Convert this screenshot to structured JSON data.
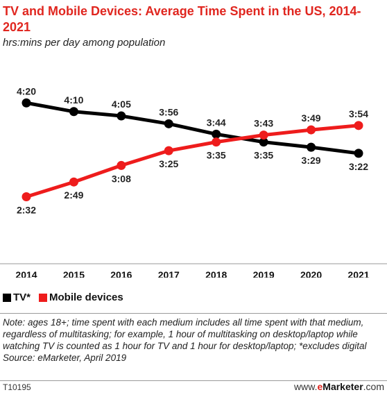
{
  "header": {
    "title": "TV and Mobile Devices: Average Time Spent in the US, 2014-2021",
    "subtitle": "hrs:mins per day among population"
  },
  "legend": {
    "tv_label": "TV*",
    "mobile_label": "Mobile devices"
  },
  "footer": {
    "note": "Note: ages 18+; time spent with each medium includes all time spent with that medium, regardless of multitasking; for example, 1 hour of multitasking on desktop/laptop while watching TV is counted as 1 hour for TV and 1 hour for desktop/laptop; *excludes digital",
    "source": "Source: eMarketer, April 2019",
    "chart_id": "T10195",
    "brand_prefix": "www.",
    "brand_e": "e",
    "brand_name": "Marketer",
    "brand_suffix": ".com"
  },
  "colors": {
    "tv": "#000000",
    "mobile": "#ee1c1c",
    "title": "#e0261f"
  },
  "chart_data": {
    "type": "line",
    "title": "TV and Mobile Devices: Average Time Spent in the US, 2014-2021",
    "subtitle": "hrs:mins per day among population",
    "xlabel": "",
    "ylabel": "",
    "categories": [
      "2014",
      "2015",
      "2016",
      "2017",
      "2018",
      "2019",
      "2020",
      "2021"
    ],
    "series": [
      {
        "name": "TV*",
        "color": "#000000",
        "values": [
          "4:20",
          "4:10",
          "4:05",
          "3:56",
          "3:44",
          "3:35",
          "3:29",
          "3:22"
        ]
      },
      {
        "name": "Mobile devices",
        "color": "#ee1c1c",
        "values": [
          "2:32",
          "2:49",
          "3:08",
          "3:25",
          "3:35",
          "3:43",
          "3:49",
          "3:54"
        ]
      }
    ],
    "grid": false,
    "legend_position": "bottom-left"
  }
}
